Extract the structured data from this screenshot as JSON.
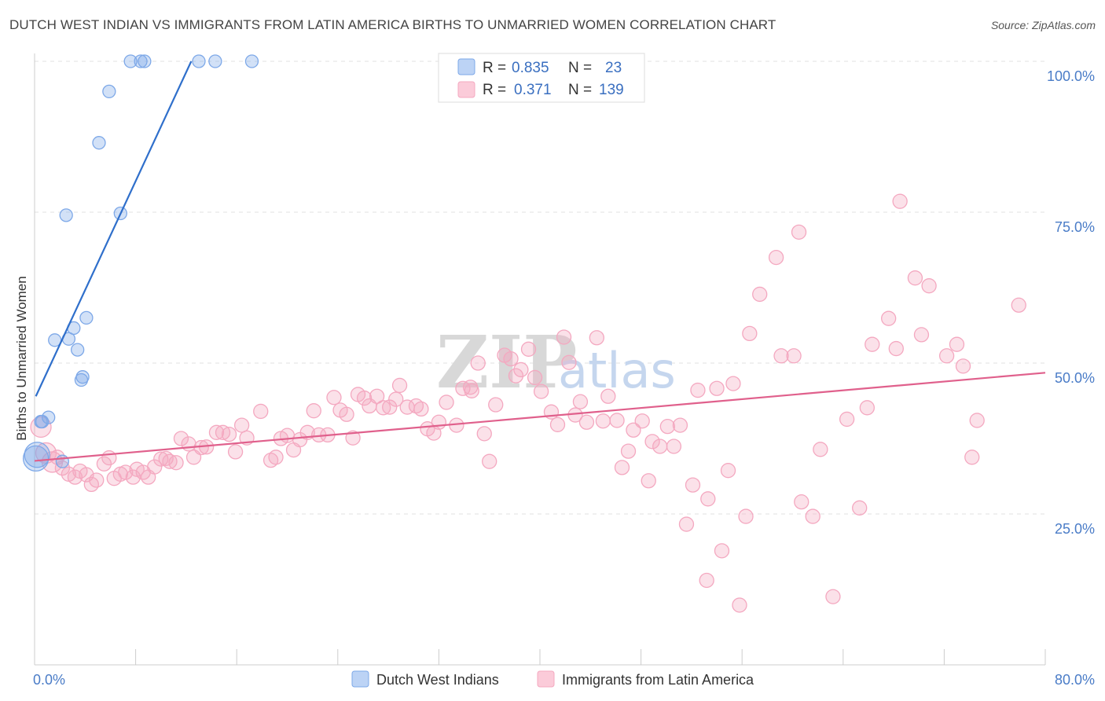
{
  "title": "DUTCH WEST INDIAN VS IMMIGRANTS FROM LATIN AMERICA BIRTHS TO UNMARRIED WOMEN CORRELATION CHART",
  "source": "Source: ZipAtlas.com",
  "watermark": {
    "zip": "ZIP",
    "atlas": "atlas"
  },
  "chart_data": {
    "type": "scatter",
    "xlabel": "",
    "ylabel": "Births to Unmarried Women",
    "xlim": [
      0,
      80
    ],
    "ylim": [
      0,
      105
    ],
    "x_tick_labels": [
      {
        "value": 0,
        "label": "0.0%"
      },
      {
        "value": 80,
        "label": "80.0%"
      }
    ],
    "y_tick_labels": [
      {
        "value": 25,
        "label": "25.0%"
      },
      {
        "value": 50,
        "label": "50.0%"
      },
      {
        "value": 75,
        "label": "75.0%"
      },
      {
        "value": 100,
        "label": "100.0%"
      }
    ],
    "grid": "horizontal dashed",
    "legend_position": "top-center",
    "series": [
      {
        "name": "Dutch West Indians",
        "color": "#7da8e8",
        "line_color": "#2f6fcb",
        "R": "0.835",
        "N": "23",
        "trend": [
          [
            0.1,
            44.5
          ],
          [
            12.4,
            100
          ]
        ],
        "points": [
          [
            7.6,
            100
          ],
          [
            8.4,
            100
          ],
          [
            8.7,
            100
          ],
          [
            13,
            100
          ],
          [
            14.3,
            100
          ],
          [
            17.2,
            100
          ],
          [
            5.9,
            95
          ],
          [
            5.1,
            86.5
          ],
          [
            2.5,
            74.5
          ],
          [
            6.8,
            74.8
          ],
          [
            4.1,
            57.5
          ],
          [
            3.1,
            55.8
          ],
          [
            1.6,
            53.8
          ],
          [
            2.7,
            54
          ],
          [
            3.4,
            52.2
          ],
          [
            3.7,
            47.2
          ],
          [
            3.8,
            47.7
          ],
          [
            1.1,
            41
          ],
          [
            0.5,
            40.3
          ],
          [
            0.6,
            40.3
          ],
          [
            2.2,
            33.7
          ],
          [
            0.1,
            34.2
          ],
          [
            0.2,
            34.8
          ]
        ]
      },
      {
        "name": "Immigrants from Latin America",
        "color": "#f4a8c0",
        "line_color": "#e0608c",
        "R": "0.371",
        "N": "139",
        "trend": [
          [
            0,
            33.8
          ],
          [
            80,
            48.4
          ]
        ],
        "points": [
          [
            0.5,
            39.4
          ],
          [
            0.9,
            35.1
          ],
          [
            1.4,
            33.6
          ],
          [
            1.8,
            34.4
          ],
          [
            2.2,
            32.6
          ],
          [
            2.7,
            31.6
          ],
          [
            3.2,
            31.1
          ],
          [
            3.6,
            32.1
          ],
          [
            4.1,
            31.5
          ],
          [
            4.5,
            29.9
          ],
          [
            4.9,
            30.6
          ],
          [
            5.5,
            33.3
          ],
          [
            5.9,
            34.3
          ],
          [
            6.3,
            30.9
          ],
          [
            6.8,
            31.6
          ],
          [
            7.2,
            31.9
          ],
          [
            7.8,
            31.1
          ],
          [
            8.1,
            32.4
          ],
          [
            8.6,
            31.9
          ],
          [
            9.0,
            31.1
          ],
          [
            9.5,
            32.8
          ],
          [
            10.0,
            34.1
          ],
          [
            10.4,
            34.2
          ],
          [
            10.7,
            33.7
          ],
          [
            11.2,
            33.5
          ],
          [
            11.6,
            37.5
          ],
          [
            12.2,
            36.6
          ],
          [
            12.6,
            34.4
          ],
          [
            13.2,
            36.0
          ],
          [
            13.6,
            36.1
          ],
          [
            14.4,
            38.5
          ],
          [
            14.9,
            38.5
          ],
          [
            15.4,
            38.2
          ],
          [
            15.9,
            35.3
          ],
          [
            16.4,
            39.7
          ],
          [
            16.8,
            37.6
          ],
          [
            17.9,
            42.0
          ],
          [
            18.7,
            33.9
          ],
          [
            19.1,
            34.4
          ],
          [
            19.5,
            37.5
          ],
          [
            20.0,
            38.0
          ],
          [
            20.5,
            35.6
          ],
          [
            21.0,
            37.3
          ],
          [
            21.6,
            38.5
          ],
          [
            22.1,
            42.1
          ],
          [
            22.5,
            38.1
          ],
          [
            23.2,
            38.1
          ],
          [
            23.7,
            44.3
          ],
          [
            24.2,
            42.2
          ],
          [
            24.7,
            41.5
          ],
          [
            25.2,
            37.6
          ],
          [
            25.6,
            44.8
          ],
          [
            26.1,
            44.2
          ],
          [
            26.5,
            42.9
          ],
          [
            27.1,
            44.5
          ],
          [
            27.6,
            42.6
          ],
          [
            28.1,
            42.7
          ],
          [
            28.6,
            44.0
          ],
          [
            28.9,
            46.3
          ],
          [
            29.5,
            42.7
          ],
          [
            30.2,
            42.9
          ],
          [
            30.6,
            42.4
          ],
          [
            31.1,
            39.1
          ],
          [
            31.6,
            38.4
          ],
          [
            32.0,
            40.2
          ],
          [
            32.6,
            43.5
          ],
          [
            33.4,
            39.7
          ],
          [
            33.9,
            45.8
          ],
          [
            34.5,
            46.0
          ],
          [
            35.1,
            50.0
          ],
          [
            35.6,
            38.3
          ],
          [
            36.0,
            33.7
          ],
          [
            36.5,
            43.1
          ],
          [
            37.2,
            51.3
          ],
          [
            37.7,
            50.7
          ],
          [
            38.1,
            47.9
          ],
          [
            38.5,
            48.9
          ],
          [
            39.1,
            52.3
          ],
          [
            39.6,
            47.6
          ],
          [
            40.1,
            45.3
          ],
          [
            40.9,
            41.9
          ],
          [
            41.4,
            39.8
          ],
          [
            41.9,
            54.3
          ],
          [
            42.3,
            50.1
          ],
          [
            42.8,
            41.4
          ],
          [
            43.2,
            43.6
          ],
          [
            43.7,
            40.2
          ],
          [
            44.5,
            54.2
          ],
          [
            45.0,
            40.4
          ],
          [
            45.4,
            44.5
          ],
          [
            46.1,
            40.5
          ],
          [
            46.5,
            32.7
          ],
          [
            47.0,
            35.4
          ],
          [
            47.4,
            38.9
          ],
          [
            48.1,
            40.4
          ],
          [
            48.6,
            30.5
          ],
          [
            48.9,
            37.0
          ],
          [
            49.5,
            36.2
          ],
          [
            50.1,
            39.5
          ],
          [
            50.6,
            36.2
          ],
          [
            51.1,
            39.7
          ],
          [
            51.6,
            23.3
          ],
          [
            52.1,
            29.8
          ],
          [
            52.5,
            45.5
          ],
          [
            53.3,
            27.5
          ],
          [
            53.2,
            14.0
          ],
          [
            54.0,
            45.8
          ],
          [
            54.4,
            18.9
          ],
          [
            54.9,
            32.2
          ],
          [
            55.3,
            46.6
          ],
          [
            55.8,
            9.9
          ],
          [
            56.3,
            24.6
          ],
          [
            56.6,
            54.9
          ],
          [
            57.4,
            61.4
          ],
          [
            58.7,
            67.5
          ],
          [
            59.1,
            51.2
          ],
          [
            60.1,
            51.2
          ],
          [
            60.5,
            71.7
          ],
          [
            60.7,
            27.0
          ],
          [
            61.6,
            24.6
          ],
          [
            62.2,
            35.7
          ],
          [
            63.2,
            11.3
          ],
          [
            64.3,
            40.7
          ],
          [
            65.3,
            26.0
          ],
          [
            65.9,
            42.6
          ],
          [
            66.3,
            53.1
          ],
          [
            67.6,
            57.4
          ],
          [
            68.2,
            52.4
          ],
          [
            68.5,
            76.8
          ],
          [
            69.7,
            64.1
          ],
          [
            70.2,
            54.7
          ],
          [
            70.8,
            62.8
          ],
          [
            72.2,
            51.2
          ],
          [
            73.0,
            53.1
          ],
          [
            73.5,
            49.5
          ],
          [
            74.2,
            34.4
          ],
          [
            74.6,
            40.5
          ],
          [
            77.9,
            59.6
          ],
          [
            34.6,
            45.4
          ]
        ]
      }
    ]
  },
  "legend": {
    "r_label": "R =",
    "n_label": "N ="
  }
}
